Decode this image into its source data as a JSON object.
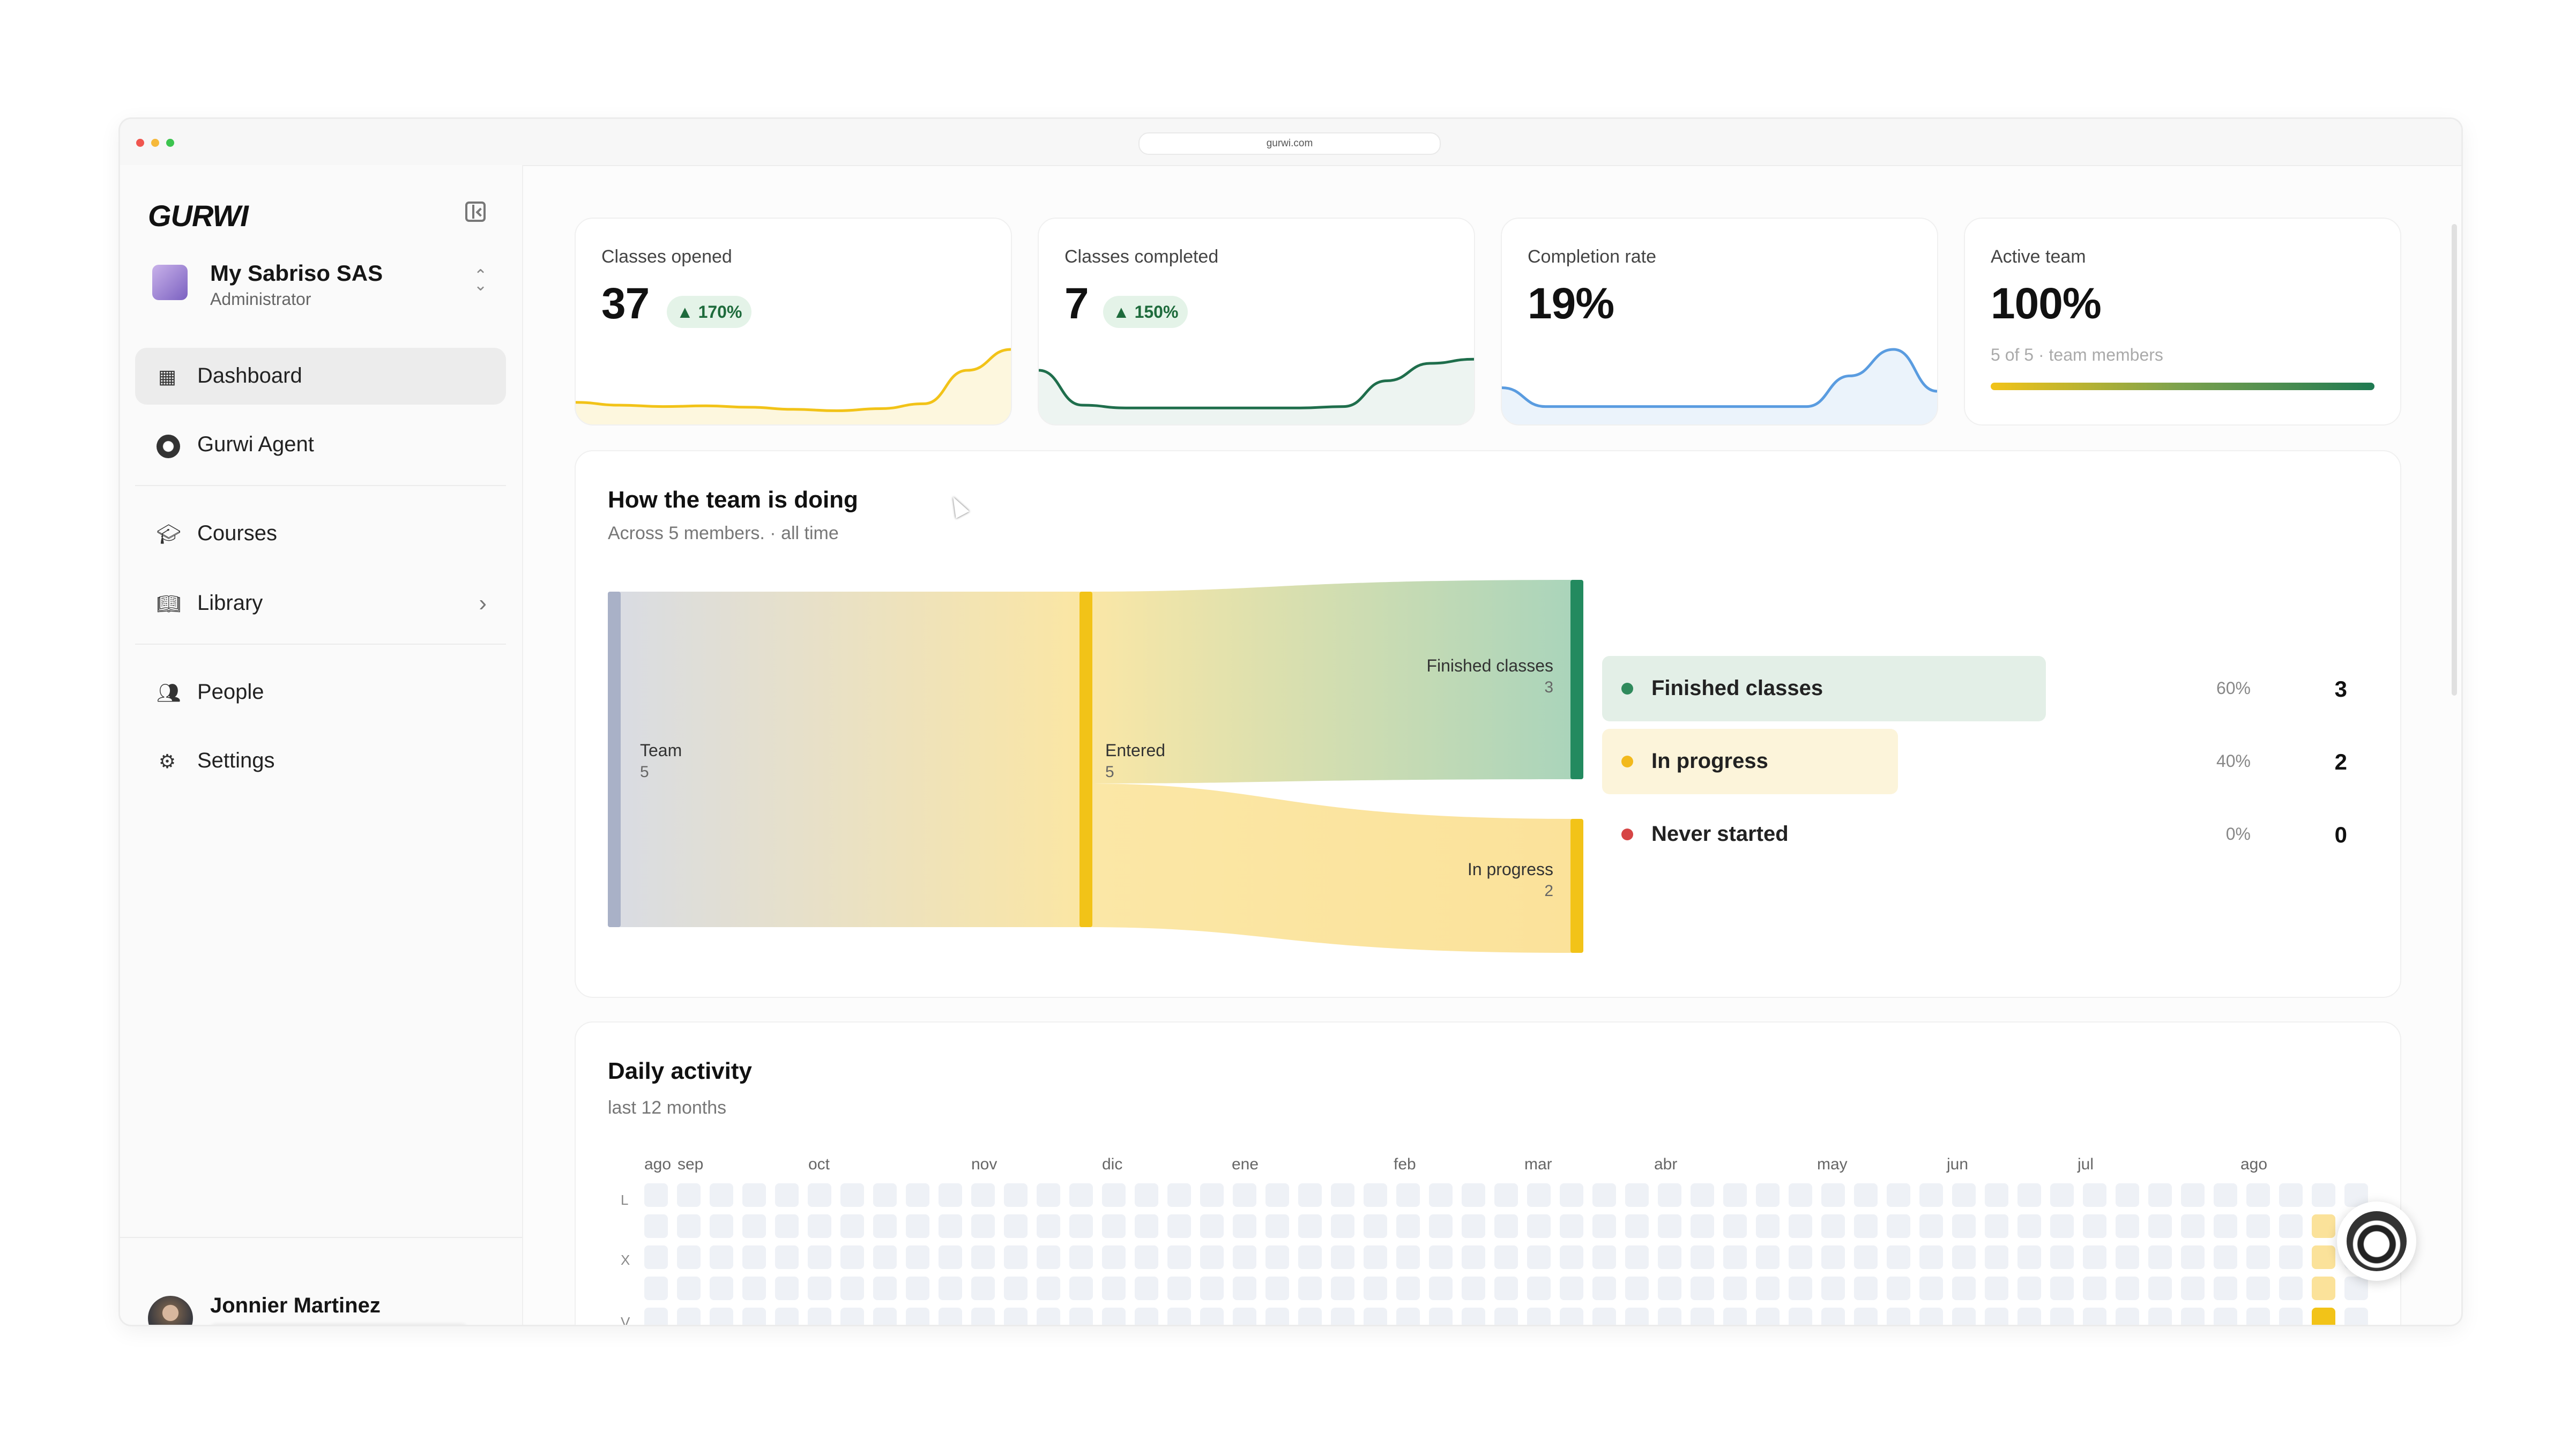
{
  "browser": {
    "url": "gurwi.com"
  },
  "sidebar": {
    "logo": "GURWI",
    "org": {
      "name": "My Sabriso SAS",
      "role": "Administrator"
    },
    "items": [
      {
        "label": "Dashboard",
        "icon": "dashboard-icon",
        "active": true
      },
      {
        "label": "Gurwi Agent",
        "icon": "agent-avatar-icon"
      },
      {
        "label": "Courses",
        "icon": "graduation-cap-icon"
      },
      {
        "label": "Library",
        "icon": "book-icon"
      },
      {
        "label": "People",
        "icon": "people-icon"
      },
      {
        "label": "Settings",
        "icon": "gear-icon"
      }
    ],
    "user": {
      "name": "Jonnier Martinez"
    }
  },
  "stats": {
    "classes_opened": {
      "title": "Classes opened",
      "value": "37",
      "change": "▲ 170%",
      "trend": [
        0.24,
        0.2,
        0.18,
        0.19,
        0.17,
        0.14,
        0.12,
        0.15,
        0.22,
        0.7,
        1.0
      ]
    },
    "classes_completed": {
      "title": "Classes completed",
      "value": "7",
      "change": "▲ 150%",
      "trend": [
        0.7,
        0.2,
        0.16,
        0.16,
        0.16,
        0.16,
        0.16,
        0.18,
        0.55,
        0.8,
        0.86
      ]
    },
    "completion_rate": {
      "title": "Completion rate",
      "value": "19%",
      "trend": [
        0.45,
        0.18,
        0.18,
        0.18,
        0.18,
        0.18,
        0.18,
        0.18,
        0.62,
        1.0,
        0.4
      ]
    },
    "active_team": {
      "title": "Active team",
      "value": "100%",
      "sub": "5 of 5 · team members",
      "progress": 1.0
    }
  },
  "team": {
    "title": "How the team is doing",
    "subtitle": "Across 5 members. · all time",
    "flow": {
      "team": {
        "label": "Team",
        "count": "5"
      },
      "entered": {
        "label": "Entered",
        "count": "5"
      },
      "finished": {
        "label": "Finished classes",
        "count": "3"
      },
      "in_progress": {
        "label": "In progress",
        "count": "2"
      }
    },
    "legend": [
      {
        "label": "Finished classes",
        "pct": "60%",
        "count": "3",
        "color": "#2f8a5c",
        "fill": 0.6
      },
      {
        "label": "In progress",
        "pct": "40%",
        "count": "2",
        "color": "#f2b91c",
        "fill": 0.4
      },
      {
        "label": "Never started",
        "pct": "0%",
        "count": "0",
        "color": "#d64545",
        "fill": 0.0
      }
    ]
  },
  "activity": {
    "title": "Daily activity",
    "subtitle": "last 12 months",
    "months": [
      "ago",
      "sep",
      "oct",
      "nov",
      "dic",
      "ene",
      "feb",
      "mar",
      "abr",
      "may",
      "jun",
      "jul",
      "ago"
    ],
    "days": [
      "L",
      "X",
      "V"
    ]
  }
}
